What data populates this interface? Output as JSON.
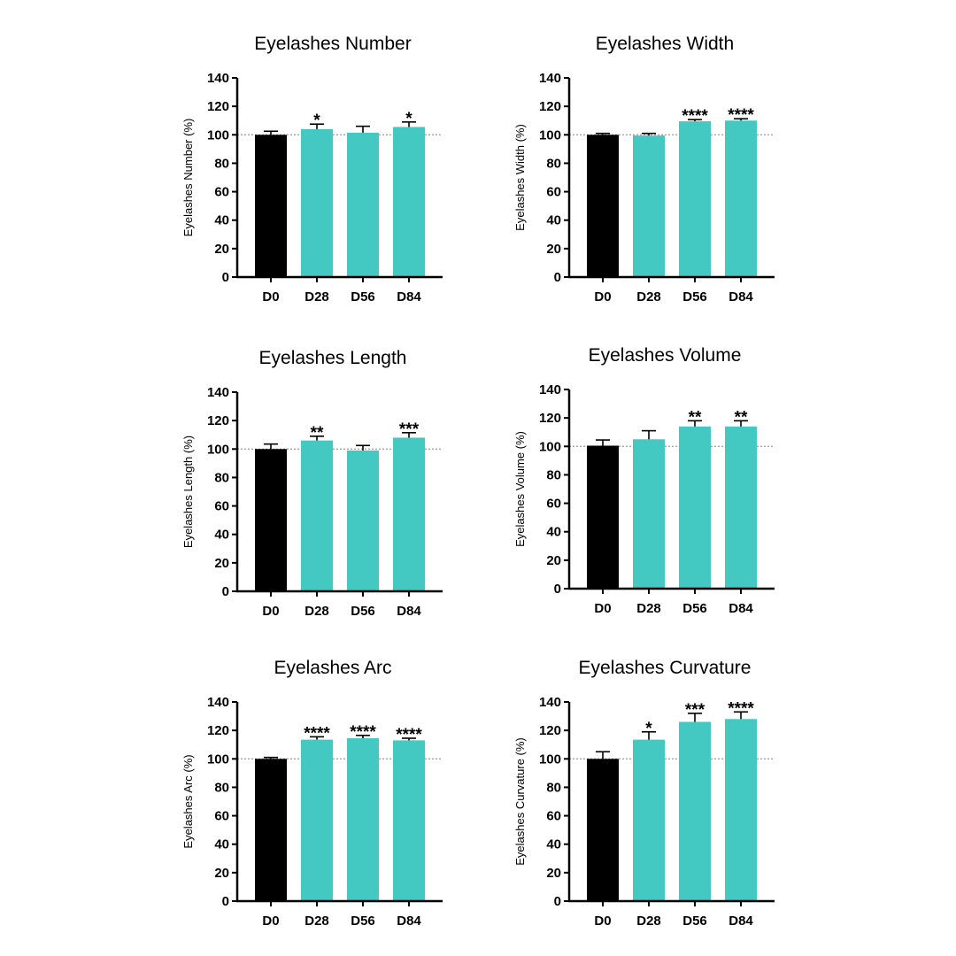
{
  "colors": {
    "baseline": "#000000",
    "treatment": "#43C9C2",
    "reference_line": "#9a9a9a",
    "axis": "#000000"
  },
  "chart_data": [
    {
      "type": "bar",
      "title": "Eyelashes Number",
      "xlabel": "",
      "ylabel": "Eyelashes Number (%)",
      "categories": [
        "D0",
        "D28",
        "D56",
        "D84"
      ],
      "values": [
        100,
        104,
        101.5,
        105.5
      ],
      "errors": [
        2.5,
        3.5,
        4.5,
        3.5
      ],
      "significance": [
        "",
        "*",
        "",
        "*"
      ],
      "ylim": [
        0,
        140
      ],
      "yticks": [
        0,
        20,
        40,
        60,
        80,
        100,
        120,
        140
      ],
      "reference_line": 100
    },
    {
      "type": "bar",
      "title": "Eyelashes Width",
      "xlabel": "",
      "ylabel": "Eyelashes Width (%)",
      "categories": [
        "D0",
        "D28",
        "D56",
        "D84"
      ],
      "values": [
        100,
        99.5,
        109.5,
        110
      ],
      "errors": [
        1,
        1.5,
        1.2,
        1.3
      ],
      "significance": [
        "",
        "",
        "****",
        "****"
      ],
      "ylim": [
        0,
        140
      ],
      "yticks": [
        0,
        20,
        40,
        60,
        80,
        100,
        120,
        140
      ],
      "reference_line": 100
    },
    {
      "type": "bar",
      "title": "Eyelashes Length",
      "xlabel": "",
      "ylabel": "Eyelashes Length (%)",
      "categories": [
        "D0",
        "D28",
        "D56",
        "D84"
      ],
      "values": [
        100,
        106,
        99,
        108
      ],
      "errors": [
        3.5,
        3,
        3.5,
        3.5
      ],
      "significance": [
        "",
        "**",
        "",
        "***"
      ],
      "ylim": [
        0,
        140
      ],
      "yticks": [
        0,
        20,
        40,
        60,
        80,
        100,
        120,
        140
      ],
      "reference_line": 100
    },
    {
      "type": "bar",
      "title": "Eyelashes Volume",
      "xlabel": "",
      "ylabel": "Eyelashes Volume (%)",
      "categories": [
        "D0",
        "D28",
        "D56",
        "D84"
      ],
      "values": [
        100.5,
        105,
        114,
        114
      ],
      "errors": [
        4,
        6,
        4,
        4
      ],
      "significance": [
        "",
        "",
        "**",
        "**"
      ],
      "ylim": [
        0,
        140
      ],
      "yticks": [
        0,
        20,
        40,
        60,
        80,
        100,
        120,
        140
      ],
      "reference_line": 100
    },
    {
      "type": "bar",
      "title": "Eyelashes Arc",
      "xlabel": "",
      "ylabel": "Eyelashes Arc (%)",
      "categories": [
        "D0",
        "D28",
        "D56",
        "D84"
      ],
      "values": [
        100,
        113.5,
        114.5,
        113
      ],
      "errors": [
        1,
        2,
        2,
        1.5
      ],
      "significance": [
        "",
        "****",
        "****",
        "****"
      ],
      "ylim": [
        0,
        140
      ],
      "yticks": [
        0,
        20,
        40,
        60,
        80,
        100,
        120,
        140
      ],
      "reference_line": 100
    },
    {
      "type": "bar",
      "title": "Eyelashes Curvature",
      "xlabel": "",
      "ylabel": "Eyelashes Curvature (%)",
      "categories": [
        "D0",
        "D28",
        "D56",
        "D84"
      ],
      "values": [
        100,
        113.5,
        126,
        128
      ],
      "errors": [
        5,
        5.5,
        6,
        5
      ],
      "significance": [
        "",
        "*",
        "***",
        "****"
      ],
      "ylim": [
        0,
        140
      ],
      "yticks": [
        0,
        20,
        40,
        60,
        80,
        100,
        120,
        140
      ],
      "reference_line": 100
    }
  ]
}
